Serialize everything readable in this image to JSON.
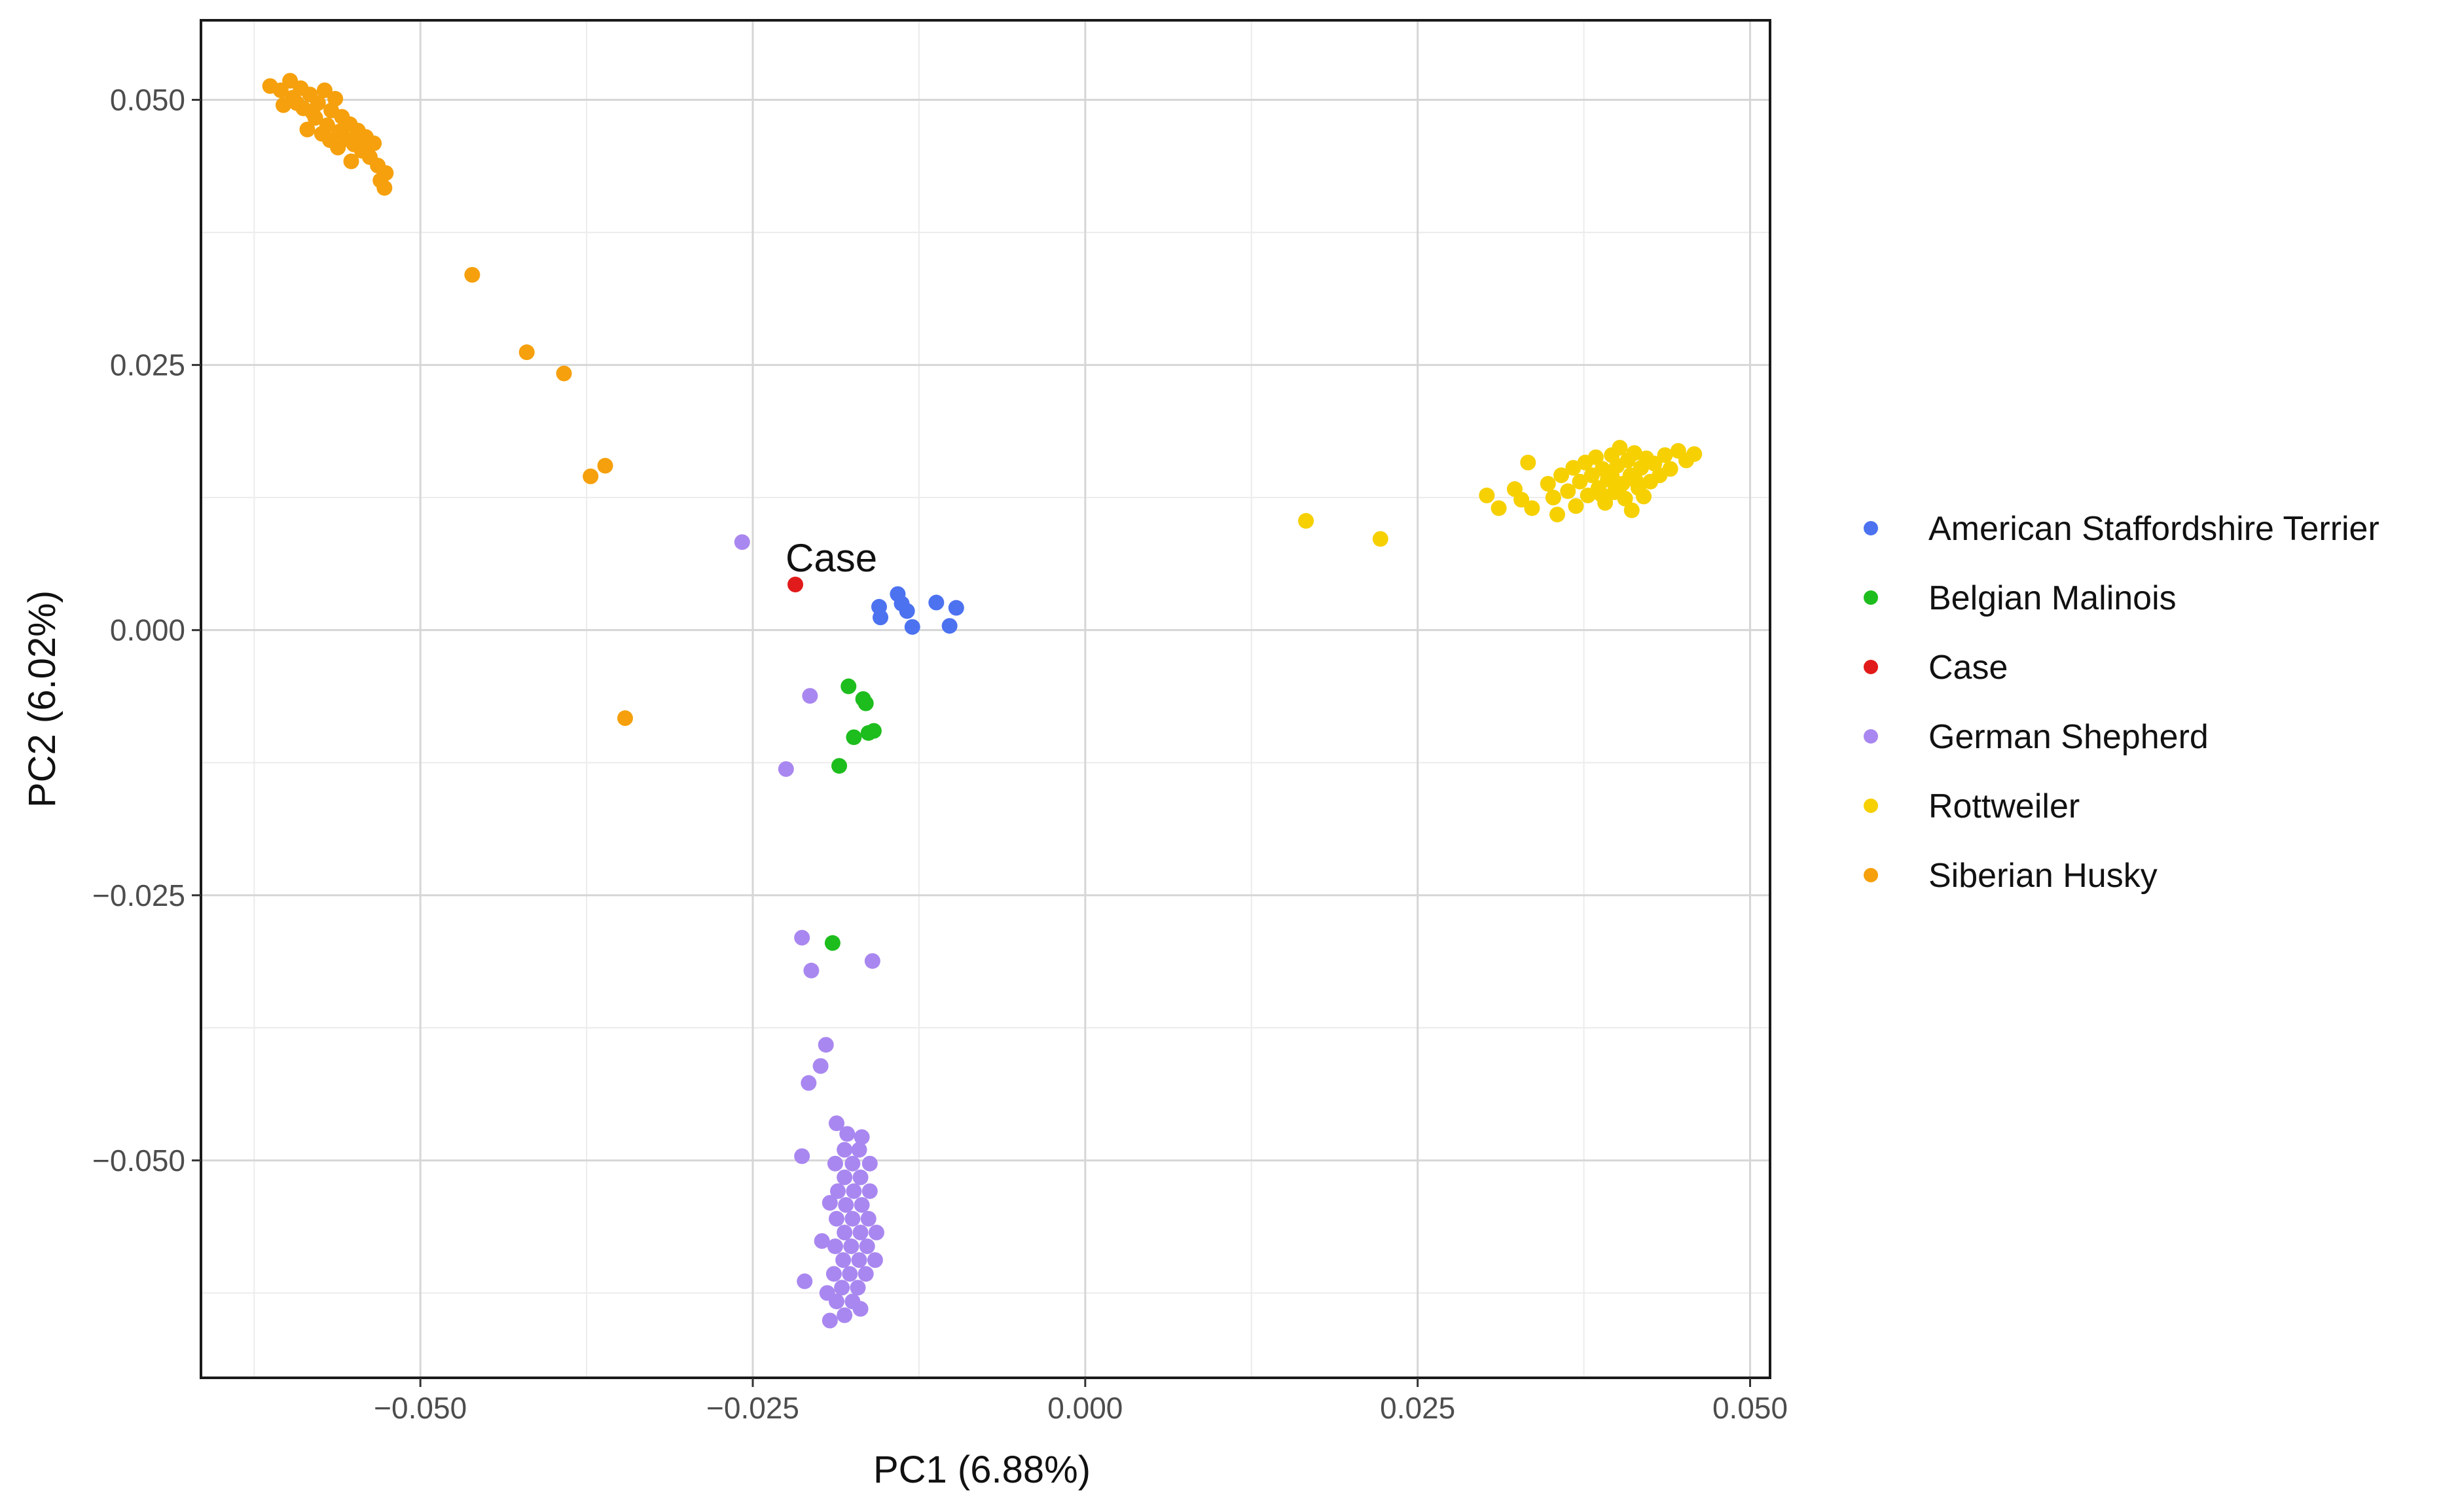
{
  "chart_data": {
    "type": "scatter",
    "title": "",
    "xlabel": "PC1 (6.88%)",
    "ylabel": "PC2 (6.02%)",
    "xlim": [
      -0.0665,
      0.0515
    ],
    "ylim": [
      -0.0705,
      0.0575
    ],
    "x_major_ticks": [
      -0.05,
      -0.025,
      0.0,
      0.025,
      0.05
    ],
    "x_tick_labels": [
      "−0.050",
      "−0.025",
      "0.000",
      "0.025",
      "0.050"
    ],
    "y_major_ticks": [
      0.05,
      0.025,
      0.0,
      -0.025,
      -0.05
    ],
    "y_tick_labels": [
      "0.050",
      "0.025",
      "0.000",
      "−0.025",
      "−0.050"
    ],
    "x_minor_grid": [
      -0.0625,
      -0.0375,
      -0.0125,
      0.0125,
      0.0375
    ],
    "y_minor_grid": [
      0.0375,
      0.0125,
      -0.0125,
      -0.0375,
      -0.0625
    ],
    "grid": true,
    "legend_position": "right",
    "annotations": [
      {
        "text": "Case",
        "x": -0.0224,
        "y": 0.0067
      }
    ],
    "series": [
      {
        "name": "American Staffordshire Terrier",
        "color": "#4c72f0",
        "points": [
          [
            -0.0155,
            0.0022
          ],
          [
            -0.0154,
            0.0012
          ],
          [
            -0.0141,
            0.0034
          ],
          [
            -0.0138,
            0.0025
          ],
          [
            -0.0134,
            0.0018
          ],
          [
            -0.013,
            0.0003
          ],
          [
            -0.0112,
            0.0026
          ],
          [
            -0.0102,
            0.0004
          ],
          [
            -0.0097,
            0.0021
          ]
        ]
      },
      {
        "name": "Belgian Malinois",
        "color": "#1dbd1d",
        "points": [
          [
            -0.0178,
            -0.0053
          ],
          [
            -0.0167,
            -0.0065
          ],
          [
            -0.0165,
            -0.0069
          ],
          [
            -0.0163,
            -0.0097
          ],
          [
            -0.0174,
            -0.0101
          ],
          [
            -0.0159,
            -0.0095
          ],
          [
            -0.0185,
            -0.0128
          ],
          [
            -0.019,
            -0.0295
          ]
        ]
      },
      {
        "name": "Case",
        "color": "#e11b1b",
        "points": [
          [
            -0.0218,
            0.0043
          ]
        ]
      },
      {
        "name": "German Shepherd",
        "color": "#a987f0",
        "points": [
          [
            -0.0258,
            0.0083
          ],
          [
            -0.0207,
            -0.0062
          ],
          [
            -0.0225,
            -0.0131
          ],
          [
            -0.0213,
            -0.029
          ],
          [
            -0.0206,
            -0.0321
          ],
          [
            -0.016,
            -0.0312
          ],
          [
            -0.0195,
            -0.0391
          ],
          [
            -0.0199,
            -0.0411
          ],
          [
            -0.0208,
            -0.0427
          ],
          [
            -0.0213,
            -0.0496
          ],
          [
            -0.0187,
            -0.0465
          ],
          [
            -0.0179,
            -0.0475
          ],
          [
            -0.0168,
            -0.0478
          ],
          [
            -0.0181,
            -0.049
          ],
          [
            -0.017,
            -0.049
          ],
          [
            -0.0188,
            -0.0503
          ],
          [
            -0.0175,
            -0.0503
          ],
          [
            -0.0162,
            -0.0503
          ],
          [
            -0.0181,
            -0.0516
          ],
          [
            -0.0169,
            -0.0516
          ],
          [
            -0.0186,
            -0.0529
          ],
          [
            -0.0174,
            -0.0529
          ],
          [
            -0.0162,
            -0.0529
          ],
          [
            -0.018,
            -0.0542
          ],
          [
            -0.0168,
            -0.0542
          ],
          [
            -0.0187,
            -0.0555
          ],
          [
            -0.0175,
            -0.0555
          ],
          [
            -0.0163,
            -0.0555
          ],
          [
            -0.0181,
            -0.0568
          ],
          [
            -0.0169,
            -0.0568
          ],
          [
            -0.0157,
            -0.0568
          ],
          [
            -0.0188,
            -0.0581
          ],
          [
            -0.0176,
            -0.0581
          ],
          [
            -0.0164,
            -0.0581
          ],
          [
            -0.0182,
            -0.0594
          ],
          [
            -0.017,
            -0.0594
          ],
          [
            -0.0158,
            -0.0594
          ],
          [
            -0.0189,
            -0.0607
          ],
          [
            -0.0177,
            -0.0607
          ],
          [
            -0.0165,
            -0.0607
          ],
          [
            -0.0183,
            -0.062
          ],
          [
            -0.0171,
            -0.062
          ],
          [
            -0.0187,
            -0.0633
          ],
          [
            -0.0175,
            -0.0633
          ],
          [
            -0.0181,
            -0.0646
          ],
          [
            -0.0169,
            -0.064
          ],
          [
            -0.0194,
            -0.0625
          ],
          [
            -0.0211,
            -0.0614
          ],
          [
            -0.0192,
            -0.0651
          ],
          [
            -0.0198,
            -0.0576
          ],
          [
            -0.0192,
            -0.054
          ]
        ]
      },
      {
        "name": "Rottweiler",
        "color": "#f6d000",
        "points": [
          [
            0.0166,
            0.0103
          ],
          [
            0.0222,
            0.0086
          ],
          [
            0.0302,
            0.0127
          ],
          [
            0.0311,
            0.0115
          ],
          [
            0.0323,
            0.0133
          ],
          [
            0.0328,
            0.0123
          ],
          [
            0.0333,
            0.0158
          ],
          [
            0.0336,
            0.0115
          ],
          [
            0.0348,
            0.0138
          ],
          [
            0.0352,
            0.0125
          ],
          [
            0.0355,
            0.0109
          ],
          [
            0.0358,
            0.0146
          ],
          [
            0.0363,
            0.0131
          ],
          [
            0.0367,
            0.0153
          ],
          [
            0.0369,
            0.0117
          ],
          [
            0.0372,
            0.014
          ],
          [
            0.0376,
            0.0158
          ],
          [
            0.0378,
            0.0127
          ],
          [
            0.0381,
            0.0146
          ],
          [
            0.0384,
            0.0163
          ],
          [
            0.0386,
            0.0134
          ],
          [
            0.0389,
            0.0152
          ],
          [
            0.0391,
            0.012
          ],
          [
            0.0393,
            0.0142
          ],
          [
            0.0396,
            0.0165
          ],
          [
            0.0398,
            0.013
          ],
          [
            0.04,
            0.0155
          ],
          [
            0.0402,
            0.0172
          ],
          [
            0.0404,
            0.0138
          ],
          [
            0.0406,
            0.0124
          ],
          [
            0.0408,
            0.016
          ],
          [
            0.041,
            0.0146
          ],
          [
            0.0411,
            0.0113
          ],
          [
            0.0413,
            0.0167
          ],
          [
            0.0416,
            0.0134
          ],
          [
            0.0418,
            0.0153
          ],
          [
            0.042,
            0.0126
          ],
          [
            0.0422,
            0.0162
          ],
          [
            0.0425,
            0.014
          ],
          [
            0.0428,
            0.0157
          ],
          [
            0.0432,
            0.0146
          ],
          [
            0.0436,
            0.0165
          ],
          [
            0.044,
            0.0152
          ],
          [
            0.0446,
            0.0169
          ],
          [
            0.0452,
            0.016
          ],
          [
            0.0458,
            0.0166
          ],
          [
            0.0396,
            0.0145
          ],
          [
            0.0388,
            0.0128
          ],
          [
            0.0414,
            0.0141
          ],
          [
            0.0401,
            0.0135
          ]
        ]
      },
      {
        "name": "Siberian Husky",
        "color": "#f5a00c",
        "points": [
          [
            -0.0613,
            0.0513
          ],
          [
            -0.0605,
            0.0509
          ],
          [
            -0.0598,
            0.0518
          ],
          [
            -0.0596,
            0.0502
          ],
          [
            -0.059,
            0.0511
          ],
          [
            -0.0588,
            0.0492
          ],
          [
            -0.0583,
            0.0505
          ],
          [
            -0.0579,
            0.0483
          ],
          [
            -0.0577,
            0.0497
          ],
          [
            -0.0572,
            0.0509
          ],
          [
            -0.057,
            0.0476
          ],
          [
            -0.0567,
            0.049
          ],
          [
            -0.0564,
            0.0501
          ],
          [
            -0.0561,
            0.047
          ],
          [
            -0.0559,
            0.0484
          ],
          [
            -0.0556,
            0.0463
          ],
          [
            -0.0553,
            0.0477
          ],
          [
            -0.055,
            0.0458
          ],
          [
            -0.0547,
            0.0471
          ],
          [
            -0.0544,
            0.0452
          ],
          [
            -0.0541,
            0.0465
          ],
          [
            -0.0538,
            0.0446
          ],
          [
            -0.0535,
            0.0459
          ],
          [
            -0.0532,
            0.0438
          ],
          [
            -0.053,
            0.0424
          ],
          [
            -0.0527,
            0.0417
          ],
          [
            -0.0526,
            0.0431
          ],
          [
            -0.0593,
            0.0497
          ],
          [
            -0.0581,
            0.0488
          ],
          [
            -0.0574,
            0.0468
          ],
          [
            -0.0562,
            0.0455
          ],
          [
            -0.0603,
            0.0495
          ],
          [
            -0.0585,
            0.0472
          ],
          [
            -0.0568,
            0.0462
          ],
          [
            -0.0552,
            0.0442
          ],
          [
            -0.0461,
            0.0335
          ],
          [
            -0.042,
            0.0262
          ],
          [
            -0.0392,
            0.0242
          ],
          [
            -0.0372,
            0.0145
          ],
          [
            -0.0361,
            0.0155
          ],
          [
            -0.0346,
            -0.0083
          ]
        ]
      }
    ]
  }
}
